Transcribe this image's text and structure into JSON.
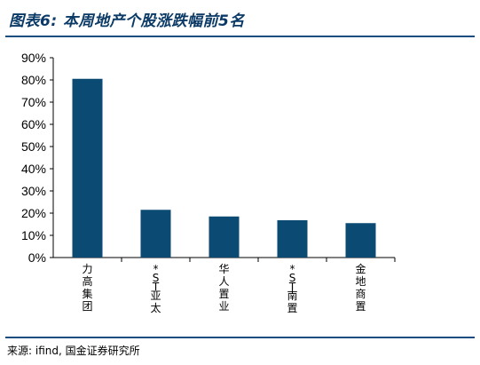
{
  "header": {
    "title": "图表6: 本周地产个股涨跌幅前5名"
  },
  "footer": {
    "source": "来源: ifind, 国金证券研究所"
  },
  "colors": {
    "bar": "#0b4a73",
    "rule": "#1a4d80",
    "title": "#0b3a66"
  },
  "chart_data": {
    "type": "bar",
    "categories": [
      "力高集团",
      "*ST亚太",
      "华人置业",
      "*ST南置",
      "金地商置"
    ],
    "values": [
      80.5,
      21.5,
      18.5,
      16.8,
      15.5
    ],
    "yticks": [
      "0%",
      "10%",
      "20%",
      "30%",
      "40%",
      "50%",
      "60%",
      "70%",
      "80%",
      "90%"
    ],
    "ylim": [
      0,
      90
    ],
    "unit": "%",
    "grid": false,
    "legend": "none"
  }
}
